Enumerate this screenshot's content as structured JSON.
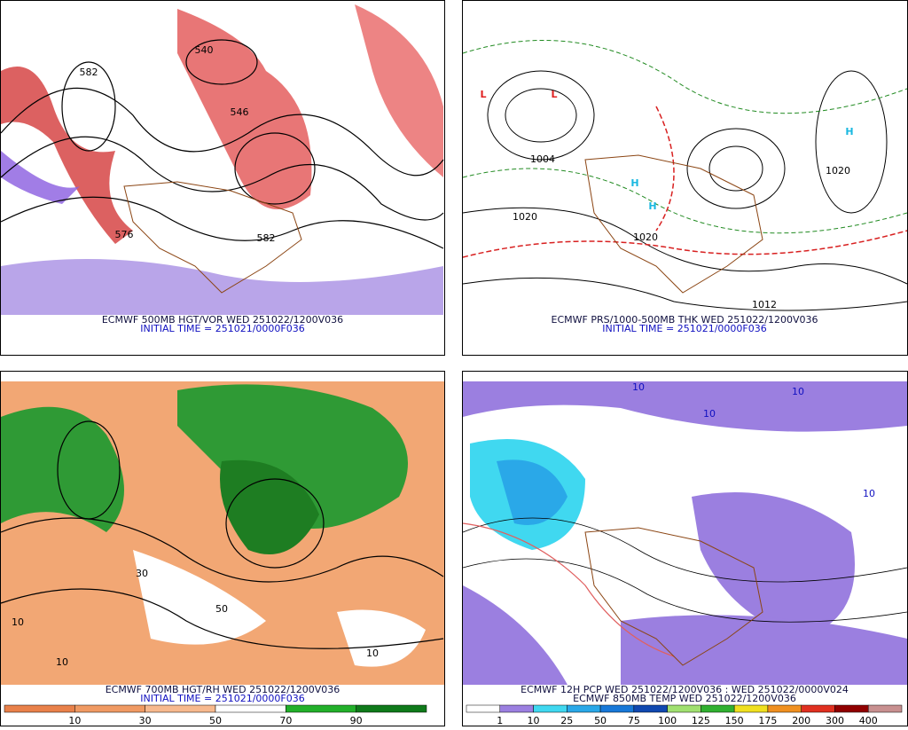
{
  "panels": [
    {
      "caption": [
        "ECMWF 500MB HGT/VOR WED 251022/1200V036",
        "INITIAL TIME = 251021/0000F036"
      ],
      "map_labels": [
        "582",
        "576",
        "546",
        "582",
        "540"
      ]
    },
    {
      "caption": [
        "ECMWF PRS/1000-500MB THK WED 251022/1200V036",
        "INITIAL TIME = 251021/0000F036"
      ],
      "map_labels": [
        "L",
        "L",
        "H",
        "H",
        "H",
        "1020",
        "1020",
        "1004",
        "1020",
        "1012"
      ]
    },
    {
      "caption": [
        "ECMWF 700MB HGT/RH WED 251022/1200V036",
        "INITIAL TIME = 251021/0000F036"
      ],
      "map_labels": [
        "10",
        "10",
        "30",
        "50",
        "10"
      ],
      "colorbar": {
        "labels": [
          10,
          30,
          50,
          70,
          90
        ],
        "colors": [
          "#e9814a",
          "#f09a63",
          "#f7b98e",
          "#ffffff",
          "#22b02a",
          "#0f7a1a"
        ]
      }
    },
    {
      "caption": [
        "ECMWF 12H PCP WED 251022/1200V036 : WED 251022/0000V024",
        "ECMWF 850MB TEMP WED 251022/1200V036"
      ],
      "map_labels": [
        "10",
        "10",
        "10",
        "10"
      ],
      "colorbar": {
        "labels": [
          1,
          10,
          25,
          50,
          75,
          100,
          125,
          150,
          175,
          200,
          300,
          400
        ],
        "colors": [
          "#ffffff",
          "#9b7fe0",
          "#40d8f0",
          "#2aa8e8",
          "#1878d8",
          "#1048b0",
          "#a0e070",
          "#30b030",
          "#f0e020",
          "#f09020",
          "#e03020",
          "#900000",
          "#c89090"
        ]
      }
    }
  ]
}
